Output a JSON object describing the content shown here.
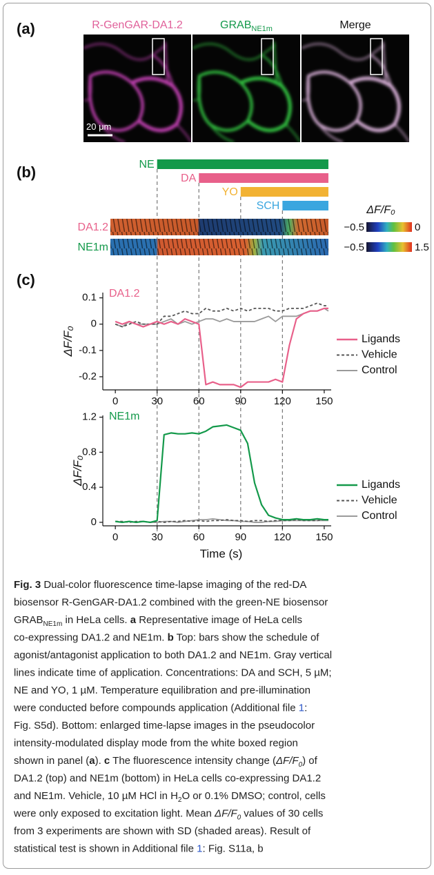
{
  "panel_a": {
    "label": "(a)",
    "images": [
      {
        "title": "R-GenGAR-DA1.2",
        "color": "#e0609a"
      },
      {
        "title": "GRAB",
        "subscript": "NE1m",
        "color": "#13994a"
      },
      {
        "title": "Merge",
        "color": "#111111"
      }
    ],
    "scale_bar": "20 μm"
  },
  "panel_b": {
    "label": "(b)",
    "bars": [
      {
        "label": "NE",
        "start": 30,
        "end": 153,
        "color": "#13994a"
      },
      {
        "label": "DA",
        "start": 60,
        "end": 153,
        "color": "#e8608a"
      },
      {
        "label": "YO",
        "start": 90,
        "end": 153,
        "color": "#f2b233"
      },
      {
        "label": "SCH",
        "start": 120,
        "end": 153,
        "color": "#3aa6df"
      }
    ],
    "colorbar_title": "ΔF/F₀",
    "strips": [
      {
        "label": "DA1.2",
        "color": "#e8608a",
        "min_label": "−0.5",
        "max_label": "0"
      },
      {
        "label": "NE1m",
        "color": "#13994a",
        "min_label": "−0.5",
        "max_label": "1.5"
      }
    ]
  },
  "panel_c": {
    "label": "(c)"
  },
  "chart_data": [
    {
      "type": "line",
      "title": "DA1.2",
      "title_color": "#e8608a",
      "ylabel": "ΔF/F₀",
      "xlim": [
        -9,
        155
      ],
      "ylim": [
        -0.25,
        0.12
      ],
      "xticks": [
        0,
        30,
        60,
        90,
        120,
        150
      ],
      "yticks": [
        -0.2,
        -0.1,
        0,
        0.1
      ],
      "legend": "right",
      "x": [
        0,
        5,
        10,
        15,
        20,
        25,
        30,
        35,
        40,
        45,
        50,
        55,
        60,
        65,
        70,
        75,
        80,
        85,
        90,
        95,
        100,
        105,
        110,
        115,
        120,
        125,
        130,
        135,
        140,
        145,
        150,
        153
      ],
      "series": [
        {
          "name": "Ligands",
          "color": "#e8608a",
          "dash": false,
          "values": [
            0.01,
            0,
            0.01,
            0,
            -0.01,
            0,
            0.01,
            0,
            0.01,
            0,
            0.02,
            0.01,
            0,
            -0.23,
            -0.22,
            -0.23,
            -0.23,
            -0.23,
            -0.24,
            -0.22,
            -0.22,
            -0.22,
            -0.22,
            -0.21,
            -0.22,
            -0.08,
            0.02,
            0.04,
            0.05,
            0.05,
            0.06,
            0.06
          ]
        },
        {
          "name": "Vehicle",
          "color": "#555555",
          "dash": true,
          "values": [
            0,
            -0.01,
            0,
            0.01,
            0,
            0,
            0,
            0.03,
            0.03,
            0.04,
            0.05,
            0.04,
            0.04,
            0.06,
            0.05,
            0.05,
            0.06,
            0.05,
            0.06,
            0.05,
            0.06,
            0.06,
            0.06,
            0.05,
            0.05,
            0.06,
            0.06,
            0.06,
            0.07,
            0.08,
            0.07,
            0.07
          ]
        },
        {
          "name": "Control",
          "color": "#9a9a9a",
          "dash": false,
          "values": [
            0,
            -0.01,
            0.01,
            0,
            0,
            0,
            0,
            0.01,
            0.02,
            0,
            0.01,
            0,
            0.01,
            0.02,
            0.02,
            0.01,
            0.02,
            0.01,
            0.01,
            0.01,
            0.01,
            0.02,
            0.03,
            0.01,
            0.03,
            0.03,
            0.03,
            0.04,
            0.05,
            0.05,
            0.06,
            0.05
          ]
        }
      ]
    },
    {
      "type": "line",
      "title": "NE1m",
      "title_color": "#13994a",
      "ylabel": "ΔF/F₀",
      "xlabel": "Time (s)",
      "xlim": [
        -9,
        155
      ],
      "ylim": [
        -0.04,
        1.22
      ],
      "xticks": [
        0,
        30,
        60,
        90,
        120,
        150
      ],
      "yticks": [
        0,
        0.4,
        0.8,
        1.2
      ],
      "legend": "right",
      "x": [
        0,
        5,
        10,
        15,
        20,
        25,
        30,
        35,
        40,
        45,
        50,
        55,
        60,
        65,
        70,
        75,
        80,
        85,
        90,
        95,
        100,
        105,
        110,
        115,
        120,
        125,
        130,
        135,
        140,
        145,
        150,
        153
      ],
      "series": [
        {
          "name": "Ligands",
          "color": "#13994a",
          "dash": false,
          "values": [
            0.01,
            0,
            0.01,
            0,
            0.01,
            0,
            0.02,
            1.0,
            1.02,
            1.01,
            1.01,
            1.02,
            1.01,
            1.04,
            1.09,
            1.1,
            1.11,
            1.08,
            1.05,
            0.9,
            0.45,
            0.2,
            0.08,
            0.05,
            0.03,
            0.03,
            0.04,
            0.03,
            0.03,
            0.04,
            0.03,
            0.03
          ]
        },
        {
          "name": "Vehicle",
          "color": "#555555",
          "dash": true,
          "values": [
            0.01,
            0.01,
            0,
            0.01,
            0.01,
            0,
            0.01,
            0,
            0.01,
            0.01,
            0.02,
            0.01,
            0.02,
            0.01,
            0.02,
            0.02,
            0.03,
            0.02,
            0.02,
            0.01,
            0.02,
            0.02,
            0.01,
            0.02,
            0.02,
            0.02,
            0.03,
            0.02,
            0.02,
            0.02,
            0.03,
            0.03
          ]
        },
        {
          "name": "Control",
          "color": "#9a9a9a",
          "dash": false,
          "values": [
            0.01,
            0,
            0.01,
            0,
            0.01,
            0,
            0,
            0.01,
            0.01,
            0,
            0.01,
            0.02,
            0.03,
            0.03,
            0.04,
            0.03,
            0.02,
            0.02,
            0.01,
            0.01,
            0,
            0,
            0.01,
            0.01,
            0.02,
            0.02,
            0.02,
            0.02,
            0.02,
            0.02,
            0.02,
            0.02
          ]
        }
      ]
    }
  ],
  "caption": {
    "lines": [
      [
        {
          "text": "Fig. 3",
          "style": "bold"
        },
        "  Dual-color fluorescence time-lapse imaging of the red-DA"
      ],
      [
        "biosensor R-GenGAR-DA1.2 combined with the green-NE biosensor"
      ],
      [
        "GRAB",
        {
          "text": "NE1m",
          "style": "sub"
        },
        " in HeLa cells. ",
        {
          "text": "a",
          "style": "bold"
        },
        " Representative image of HeLa cells"
      ],
      [
        "co-expressing DA1.2 and NE1m. ",
        {
          "text": "b",
          "style": "bold"
        },
        " Top: bars show the schedule of"
      ],
      [
        "agonist/antagonist application to both DA1.2 and NE1m. Gray vertical"
      ],
      [
        "lines indicate time of application. Concentrations: DA and SCH, 5 µM;"
      ],
      [
        "NE and YO, 1 µM. Temperature equilibration and pre-illumination"
      ],
      [
        "were conducted before compounds application (Additional file ",
        {
          "text": "1",
          "style": "link"
        },
        ":"
      ],
      [
        "Fig. S5d). Bottom: enlarged time-lapse images in the pseudocolor"
      ],
      [
        "intensity-modulated display mode from the white boxed region"
      ],
      [
        "shown in panel (",
        {
          "text": "a",
          "style": "bold"
        },
        "). ",
        {
          "text": "c",
          "style": "bold"
        },
        " The fluorescence intensity change (",
        {
          "text": "ΔF/F",
          "style": "italic"
        },
        {
          "text": "0",
          "style": "sub"
        },
        ") of"
      ],
      [
        "DA1.2 (top) and NE1m (bottom) in HeLa cells co-expressing DA1.2"
      ],
      [
        "and NE1m. Vehicle, 10 µM HCl in H",
        {
          "text": "2",
          "style": "sub"
        },
        "O or 0.1% DMSO; control, cells"
      ],
      [
        "were only exposed to excitation light. Mean ",
        {
          "text": "ΔF/F",
          "style": "italic"
        },
        {
          "text": "0",
          "style": "sub"
        },
        " values of 30 cells"
      ],
      [
        "from 3 experiments are shown with SD (shaded areas). Result of"
      ],
      [
        "statistical test is shown in Additional file ",
        {
          "text": "1",
          "style": "link"
        },
        ": Fig. S11a, b"
      ]
    ]
  }
}
